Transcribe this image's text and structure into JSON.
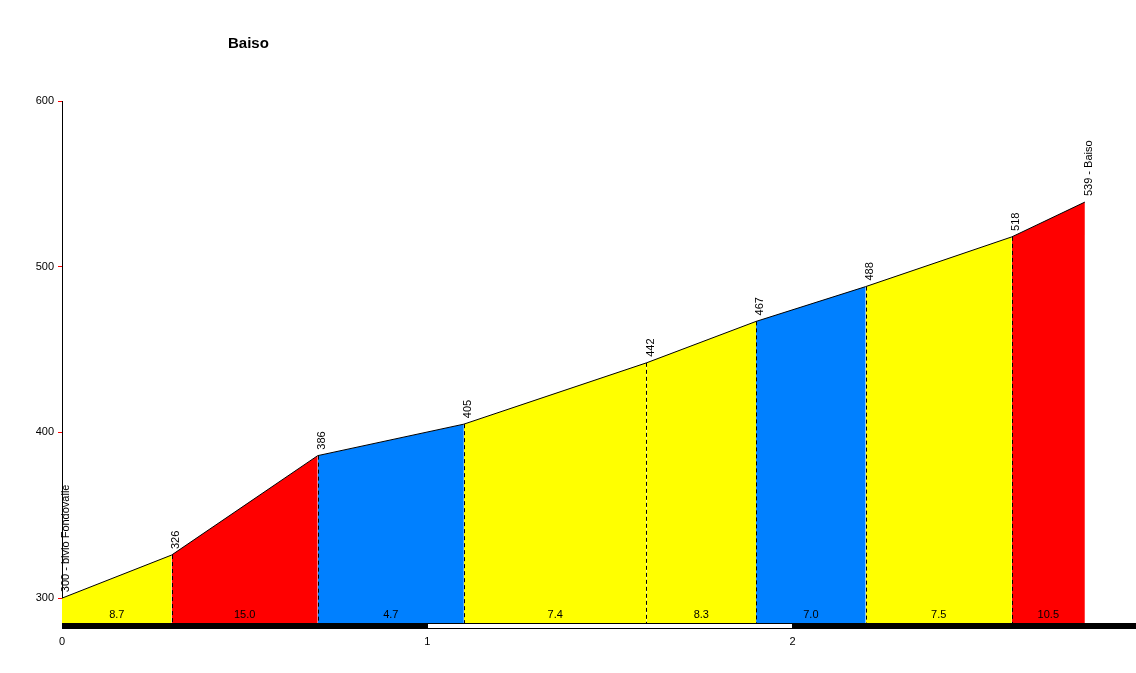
{
  "chart_data": {
    "type": "area",
    "title": "Baiso",
    "xlim": [
      0,
      2.94
    ],
    "xticks": [
      0,
      1,
      2
    ],
    "ylim": [
      285,
      600
    ],
    "yticks": [
      300,
      400,
      500,
      600
    ],
    "grid": false,
    "series": [
      {
        "color": "#ffff00",
        "x": [
          0,
          0.3
        ],
        "values": [
          300,
          326
        ]
      },
      {
        "color": "#ff0000",
        "x": [
          0.3,
          0.7
        ],
        "values": [
          326,
          386
        ]
      },
      {
        "color": "#0080ff",
        "x": [
          0.7,
          1.1
        ],
        "values": [
          386,
          405
        ]
      },
      {
        "color": "#ffff00",
        "x": [
          1.1,
          1.6
        ],
        "values": [
          405,
          442
        ]
      },
      {
        "color": "#ffff00",
        "x": [
          1.6,
          1.9
        ],
        "values": [
          442,
          467
        ]
      },
      {
        "color": "#0080ff",
        "x": [
          1.9,
          2.2
        ],
        "values": [
          467,
          488
        ]
      },
      {
        "color": "#ffff00",
        "x": [
          2.2,
          2.6
        ],
        "values": [
          488,
          518
        ]
      },
      {
        "color": "#ff0000",
        "x": [
          2.6,
          2.8
        ],
        "values": [
          518,
          539
        ]
      },
      {
        "type": "line",
        "color": "#000000",
        "x": [
          0,
          0.3,
          0.7,
          1.1,
          1.6,
          1.9,
          2.2,
          2.6,
          2.8
        ],
        "values": [
          300,
          326,
          386,
          405,
          442,
          467,
          488,
          518,
          539
        ],
        "value_labels": [
          "300 - bivio Fondovalle",
          "326",
          "386",
          "405",
          "442",
          "467",
          "488",
          "518",
          "539 - Baiso"
        ]
      }
    ],
    "annotations": [
      "8.7",
      "15.0",
      "4.7",
      "7.4",
      "8.3",
      "7.0",
      "7.5",
      "10.5"
    ]
  }
}
